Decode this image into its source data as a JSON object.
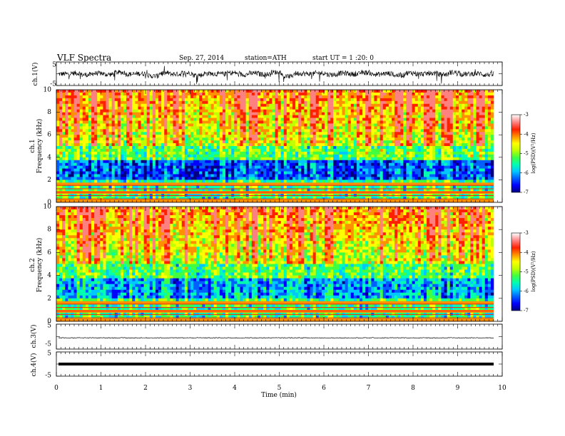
{
  "header": {
    "title": "VLF  Spectra",
    "date": "Sep. 27, 2014",
    "station": "station=ATH",
    "start": "start  UT  =   1  :20: 0"
  },
  "colorbar_colors": [
    "#000080",
    "#0000ff",
    "#0060ff",
    "#00c8ff",
    "#00ffb0",
    "#40ff40",
    "#c0ff00",
    "#ffff00",
    "#ff9000",
    "#ff2000",
    "#ff8080",
    "#ffffff"
  ],
  "chart_data": [
    {
      "type": "line",
      "panel": "ch1",
      "ylabel": "ch.1(V)",
      "ylim": [
        -5,
        5
      ],
      "yticks": [
        "5",
        "-5"
      ],
      "series": [
        {
          "values": [
            -0.3,
            0.6,
            -1.2,
            0.4,
            -0.8,
            1.5,
            -0.5,
            0.2,
            -2.8,
            0.7,
            -0.4,
            0.9,
            -1.6,
            0.3,
            -0.2,
            1.1,
            -0.9,
            0.5,
            -0.6,
            1.8,
            -3.2,
            0.4,
            -0.1,
            0.8,
            -1.0,
            0.6,
            -0.4,
            1.3,
            -0.7,
            0.2,
            -1.9,
            0.9,
            -0.3,
            0.5,
            -0.8,
            1.6,
            -0.5,
            0.1,
            -1.2,
            0.7
          ]
        }
      ]
    },
    {
      "type": "heatmap",
      "panel": "ch1",
      "ylabel": "Frequency  (kHz)",
      "channel": "ch.1",
      "ylim": [
        0,
        10
      ],
      "yticks": [
        "0",
        "2",
        "4",
        "6",
        "8",
        "10"
      ],
      "colorbar_label": "log(PSD)(V²/Hz)",
      "colorbar_range": [
        -7,
        -3
      ],
      "colorbar_ticks": [
        "-3",
        "-4",
        "-5",
        "-6",
        "-7"
      ]
    },
    {
      "type": "heatmap",
      "panel": "ch2",
      "ylabel": "Frequency  (kHz)",
      "channel": "ch.2",
      "ylim": [
        0,
        10
      ],
      "yticks": [
        "0",
        "2",
        "4",
        "6",
        "8",
        "10"
      ],
      "colorbar_label": "log(PSD)(V²/Hz)",
      "colorbar_range": [
        -7,
        -3
      ],
      "colorbar_ticks": [
        "-3",
        "-4",
        "-5",
        "-6",
        "-7"
      ]
    },
    {
      "type": "line",
      "panel": "ch3",
      "ylabel": "ch.3(V)",
      "ylim": [
        -5,
        5
      ],
      "yticks": [
        "5",
        "-5"
      ],
      "series": [
        {
          "values": [
            -0.5,
            -0.5,
            -0.5,
            -0.5,
            -0.5,
            -0.5,
            -0.5,
            -0.5,
            -0.5,
            -0.5
          ]
        }
      ]
    },
    {
      "type": "line",
      "panel": "ch4",
      "ylabel": "ch.4(V)",
      "ylim": [
        -5,
        5
      ],
      "yticks": [
        "5",
        "-5"
      ],
      "series": [
        {
          "values": [
            0,
            0,
            0,
            0,
            0,
            0,
            0,
            0,
            0,
            0
          ]
        }
      ]
    }
  ],
  "xaxis": {
    "label": "Time  (min)",
    "range": [
      0,
      10
    ],
    "ticks": [
      "0",
      "1",
      "2",
      "3",
      "4",
      "5",
      "6",
      "7",
      "8",
      "9",
      "10"
    ]
  }
}
